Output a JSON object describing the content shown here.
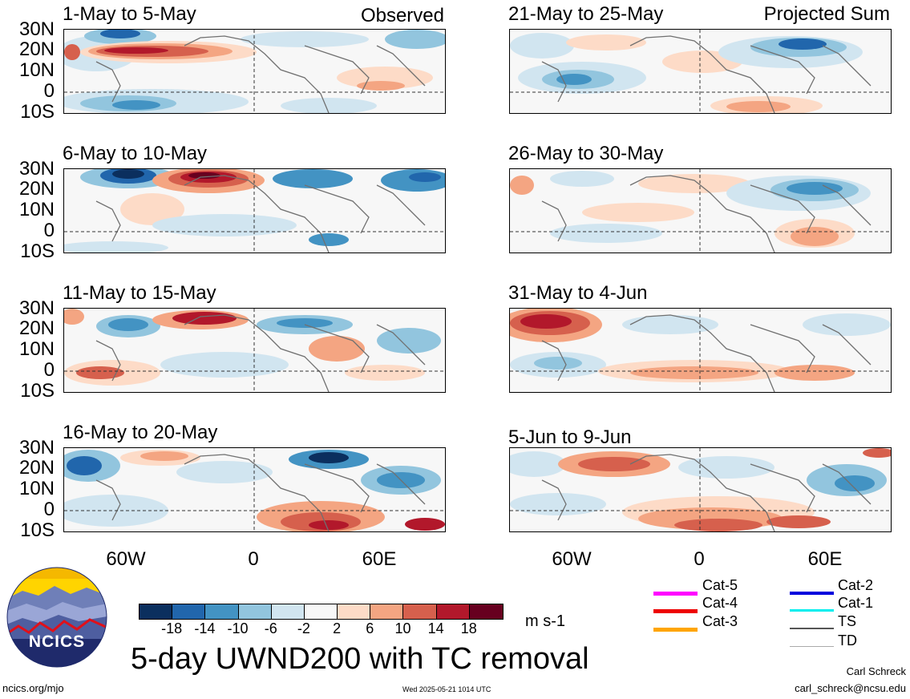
{
  "panels": [
    {
      "id": "p1",
      "title": "1-May to 5-May",
      "corner": "Observed"
    },
    {
      "id": "p2",
      "title": "21-May to 25-May",
      "corner": "Projected Sum"
    },
    {
      "id": "p3",
      "title": "6-May to 10-May",
      "corner": ""
    },
    {
      "id": "p4",
      "title": "26-May to 30-May",
      "corner": ""
    },
    {
      "id": "p5",
      "title": "11-May to 15-May",
      "corner": ""
    },
    {
      "id": "p6",
      "title": "31-May to 4-Jun",
      "corner": ""
    },
    {
      "id": "p7",
      "title": "16-May to 20-May",
      "corner": ""
    },
    {
      "id": "p8",
      "title": "5-Jun to 9-Jun",
      "corner": ""
    }
  ],
  "lat_labels": [
    "30N",
    "20N",
    "10N",
    "0",
    "10S"
  ],
  "lon_labels": [
    "60W",
    "0",
    "60E"
  ],
  "colorbar": {
    "colors": [
      "#0b2f5e",
      "#2166ac",
      "#4393c3",
      "#92c5de",
      "#d1e5f0",
      "#f7f7f7",
      "#fddbc7",
      "#f4a582",
      "#d6604d",
      "#b2182b",
      "#67001f"
    ],
    "ticks": [
      "-18",
      "-14",
      "-10",
      "-6",
      "-2",
      "2",
      "6",
      "10",
      "14",
      "18"
    ],
    "units": "m s-1"
  },
  "tc_legend": [
    {
      "label": "Cat-5",
      "color": "#ff00ff"
    },
    {
      "label": "Cat-2",
      "color": "#0000dd"
    },
    {
      "label": "Cat-4",
      "color": "#ee0000"
    },
    {
      "label": "Cat-1",
      "color": "#00eeee"
    },
    {
      "label": "Cat-3",
      "color": "#ffa500"
    },
    {
      "label": "TS",
      "color": "#555555"
    },
    {
      "label": "TD",
      "color": "#aaaaaa"
    }
  ],
  "logo_text": "NCICS",
  "main_title": "5-day UWND200 with TC removal",
  "footer": {
    "left": "ncics.org/mjo",
    "center": "Wed 2025-05-21 1014 UTC",
    "author": "Carl Schreck",
    "email": "carl_schreck@ncsu.edu"
  }
}
